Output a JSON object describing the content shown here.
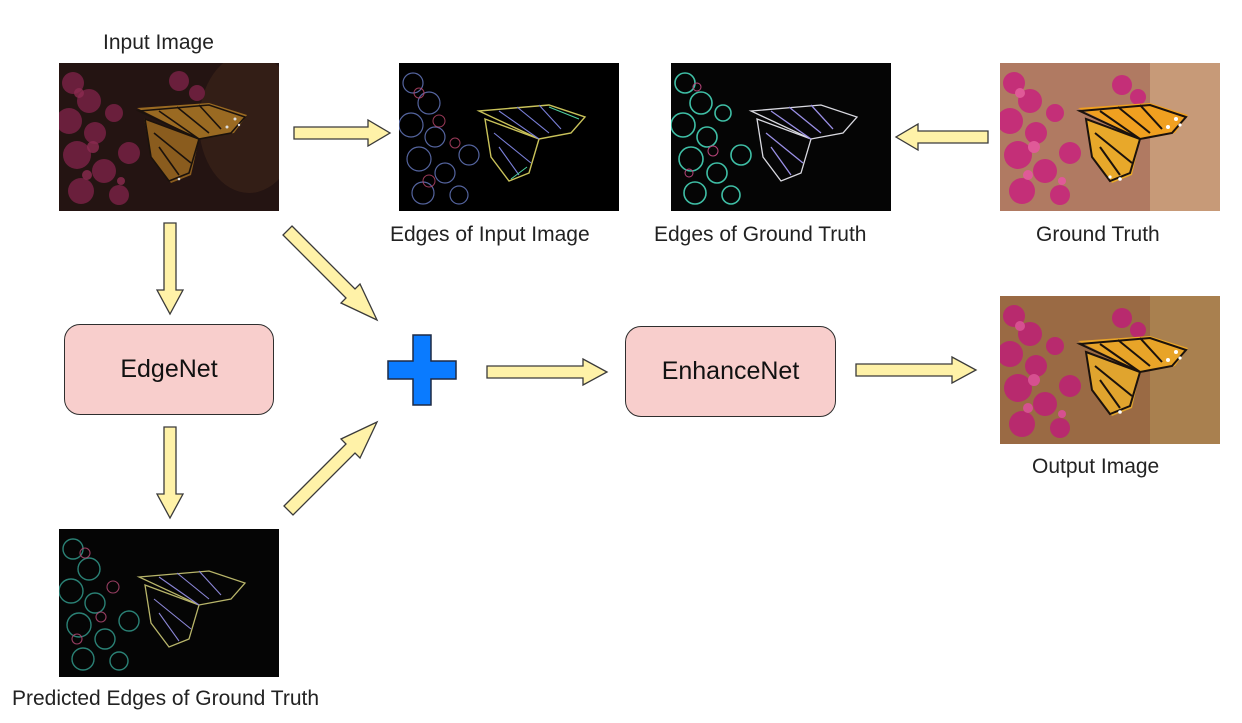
{
  "labels": {
    "input_image": "Input Image",
    "edges_input": "Edges of Input Image",
    "edges_gt": "Edges of Ground Truth",
    "ground_truth": "Ground Truth",
    "output_image": "Output Image",
    "predicted_edges": "Predicted Edges of Ground Truth"
  },
  "nodes": {
    "edgenet": "EdgeNet",
    "enhancenet": "EnhanceNet"
  },
  "colors": {
    "node_fill": "#f8cecc",
    "arrow_fill": "#fff2a8",
    "plus": "#0a7bff"
  }
}
